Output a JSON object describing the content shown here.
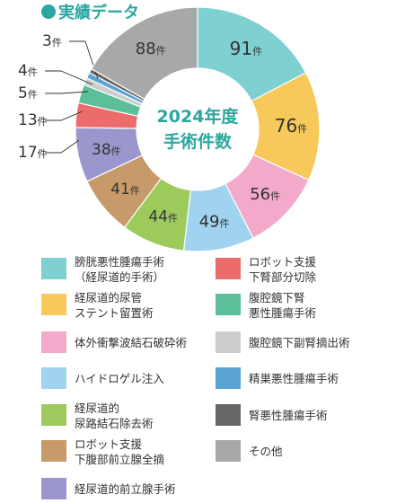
{
  "header": {
    "title": "実績データ",
    "accent": "#2aa7a0"
  },
  "chart_data": {
    "type": "pie",
    "variant": "donut",
    "title": "実績データ",
    "center_label": [
      "2024年度",
      "手術件数"
    ],
    "unit": "件",
    "slices": [
      {
        "label": "膀胱悪性腫瘍手術\n（経尿道的手術）",
        "value": 91,
        "color": "#7fd0d0"
      },
      {
        "label": "経尿道的尿管\nステント留置術",
        "value": 76,
        "color": "#f7c85a"
      },
      {
        "label": "体外衝撃波結石破砕術",
        "value": 56,
        "color": "#f3a9ca"
      },
      {
        "label": "ハイドロゲル注入",
        "value": 49,
        "color": "#9fd3ef"
      },
      {
        "label": "経尿道的\n尿路結石除去術",
        "value": 44,
        "color": "#9ccb5c"
      },
      {
        "label": "ロボット支援\n下腹部前立腺全摘",
        "value": 41,
        "color": "#c79a6a"
      },
      {
        "label": "経尿道的前立腺手術",
        "value": 38,
        "color": "#9b96cb"
      },
      {
        "label": "ロボット支援\n下腎部分切除",
        "value": 17,
        "color": "#ec6b6b"
      },
      {
        "label": "腹腔鏡下腎\n悪性腫瘍手術",
        "value": 13,
        "color": "#5bbf99"
      },
      {
        "label": "腹腔鏡下副腎摘出術",
        "value": 5,
        "color": "#cdcdcd"
      },
      {
        "label": "精巣悪性腫瘍手術",
        "value": 4,
        "color": "#5aa3d4"
      },
      {
        "label": "腎悪性腫瘍手術",
        "value": 3,
        "color": "#666666"
      },
      {
        "label": "その他",
        "value": 88,
        "color": "#a8a8a8"
      }
    ]
  }
}
